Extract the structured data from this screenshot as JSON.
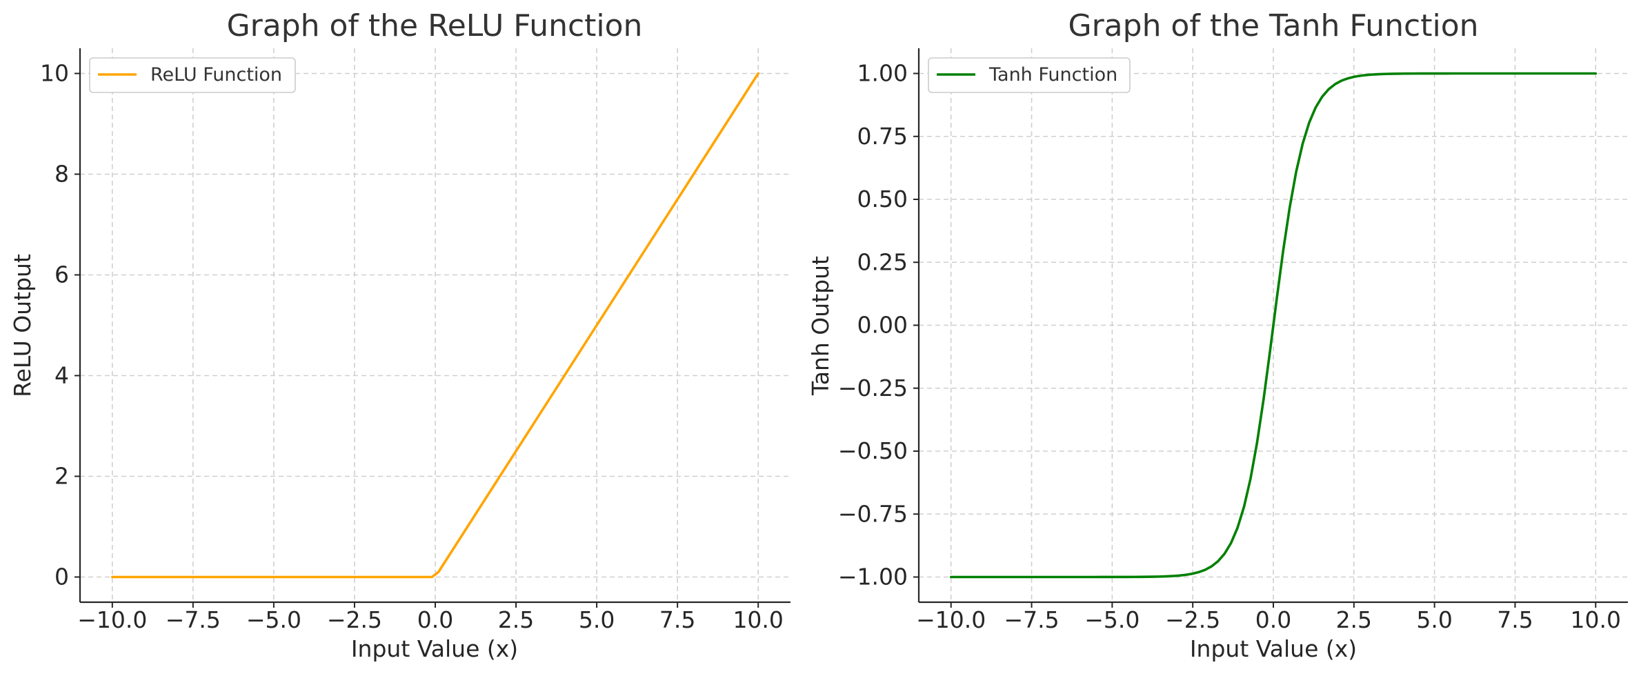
{
  "chart_data": [
    {
      "type": "line",
      "title": "Graph of the ReLU Function",
      "xlabel": "Input Value (x)",
      "ylabel": "ReLU Output",
      "xlim": [
        -11.0,
        11.0
      ],
      "ylim": [
        -0.5,
        10.5
      ],
      "x_ticks": [
        -10.0,
        -7.5,
        -5.0,
        -2.5,
        0.0,
        2.5,
        5.0,
        7.5,
        10.0
      ],
      "x_tick_labels": [
        "−10.0",
        "−7.5",
        "−5.0",
        "−2.5",
        "0.0",
        "2.5",
        "5.0",
        "7.5",
        "10.0"
      ],
      "y_ticks": [
        0,
        2,
        4,
        6,
        8,
        10
      ],
      "y_tick_labels": [
        "0",
        "2",
        "4",
        "6",
        "8",
        "10"
      ],
      "grid": true,
      "legend_position": "upper-left",
      "series": [
        {
          "name": "ReLU Function",
          "color": "#FFA500",
          "function": "relu",
          "x_range": [
            -10,
            10
          ],
          "samples": 100
        }
      ]
    },
    {
      "type": "line",
      "title": "Graph of the Tanh Function",
      "xlabel": "Input Value (x)",
      "ylabel": "Tanh Output",
      "xlim": [
        -11.0,
        11.0
      ],
      "ylim": [
        -1.1,
        1.1
      ],
      "x_ticks": [
        -10.0,
        -7.5,
        -5.0,
        -2.5,
        0.0,
        2.5,
        5.0,
        7.5,
        10.0
      ],
      "x_tick_labels": [
        "−10.0",
        "−7.5",
        "−5.0",
        "−2.5",
        "0.0",
        "2.5",
        "5.0",
        "7.5",
        "10.0"
      ],
      "y_ticks": [
        -1.0,
        -0.75,
        -0.5,
        -0.25,
        0.0,
        0.25,
        0.5,
        0.75,
        1.0
      ],
      "y_tick_labels": [
        "−1.00",
        "−0.75",
        "−0.50",
        "−0.25",
        "0.00",
        "0.25",
        "0.50",
        "0.75",
        "1.00"
      ],
      "grid": true,
      "legend_position": "upper-left",
      "series": [
        {
          "name": "Tanh Function",
          "color": "#008000",
          "function": "tanh",
          "x_range": [
            -10,
            10
          ],
          "samples": 100
        }
      ]
    }
  ]
}
